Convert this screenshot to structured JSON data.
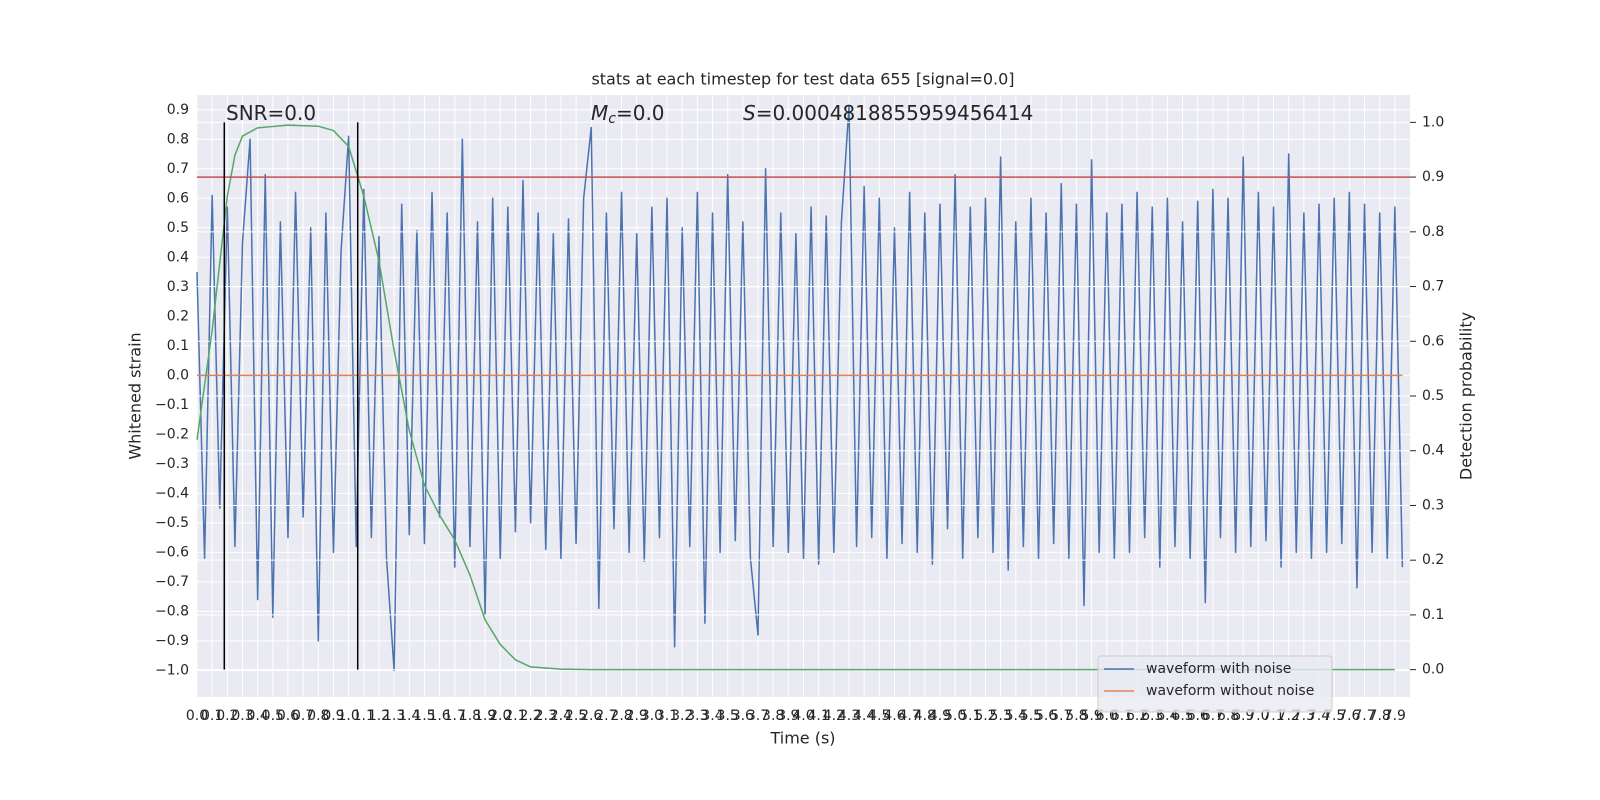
{
  "chart_data": {
    "type": "line",
    "title": "stats at each timestep for test data 655 [signal=0.0]",
    "xlabel": "Time (s)",
    "ylabel": "Whitened strain",
    "y2label": "Detection probability",
    "xlim": [
      0,
      8.0
    ],
    "ylim": [
      -1.09,
      0.95
    ],
    "y2lim": [
      -0.05,
      1.05
    ],
    "grid": true,
    "legend": "lower right",
    "xticks": [
      {
        "value": 0,
        "label": "0.0"
      },
      0.1,
      0.2,
      0.3,
      0.4,
      0.5,
      0.6,
      0.7,
      0.8,
      0.9,
      {
        "value": 1,
        "label": "1.0"
      },
      1.1,
      1.2,
      1.3,
      1.4,
      1.5,
      1.6,
      1.7,
      1.8,
      1.9,
      {
        "value": 2,
        "label": "2.0"
      },
      2.1,
      2.2,
      2.3,
      2.4,
      2.5,
      2.6,
      2.7,
      2.8,
      2.9,
      {
        "value": 3,
        "label": "3.0"
      },
      3.1,
      3.2,
      3.3,
      3.4,
      3.5,
      3.6,
      3.7,
      3.8,
      3.9,
      {
        "value": 4,
        "label": "4.0"
      },
      4.1,
      4.2,
      4.3,
      4.4,
      4.5,
      4.6,
      4.7,
      4.8,
      4.9,
      {
        "value": 5,
        "label": "5.0"
      },
      5.1,
      5.2,
      5.3,
      5.4,
      5.5,
      5.6,
      5.7,
      5.8,
      5.9,
      {
        "value": 6,
        "label": "6.0"
      },
      6.1,
      6.2,
      6.3,
      6.4,
      6.5,
      6.6,
      6.7,
      6.8,
      6.9,
      {
        "value": 7,
        "label": "7.0"
      },
      7.1,
      7.2,
      7.3,
      7.4,
      7.5,
      7.6,
      7.7,
      7.8,
      7.9
    ],
    "yticks": [
      0.9,
      0.8,
      0.7,
      0.6,
      0.5,
      0.4,
      0.3,
      0.2,
      0.1,
      {
        "value": 0,
        "label": "0.0"
      },
      {
        "value": -0.1,
        "label": "−0.1"
      },
      {
        "value": -0.2,
        "label": "−0.2"
      },
      {
        "value": -0.3,
        "label": "−0.3"
      },
      {
        "value": -0.4,
        "label": "−0.4"
      },
      {
        "value": -0.5,
        "label": "−0.5"
      },
      {
        "value": -0.6,
        "label": "−0.6"
      },
      {
        "value": -0.7,
        "label": "−0.7"
      },
      {
        "value": -0.8,
        "label": "−0.8"
      },
      {
        "value": -0.9,
        "label": "−0.9"
      },
      {
        "value": -1.0,
        "label": "−1.0"
      }
    ],
    "y2ticks": [
      {
        "value": 0,
        "label": "0.0"
      },
      0.1,
      0.2,
      0.3,
      0.4,
      0.5,
      0.6,
      0.7,
      0.8,
      0.9,
      {
        "value": 1,
        "label": "1.0"
      }
    ],
    "series": [
      {
        "name": "waveform with noise",
        "color": "#4c72b0",
        "x": [
          0,
          0.05,
          0.1,
          0.15,
          0.2,
          0.25,
          0.3,
          0.35,
          0.4,
          0.45,
          0.5,
          0.55,
          0.6,
          0.65,
          0.7,
          0.75,
          0.8,
          0.85,
          0.9,
          0.95,
          1,
          1.05,
          1.1,
          1.15,
          1.2,
          1.25,
          1.3,
          1.35,
          1.4,
          1.45,
          1.5,
          1.55,
          1.6,
          1.65,
          1.7,
          1.75,
          1.8,
          1.85,
          1.9,
          1.95,
          2,
          2.05,
          2.1,
          2.15,
          2.2,
          2.25,
          2.3,
          2.35,
          2.4,
          2.45,
          2.5,
          2.55,
          2.6,
          2.65,
          2.7,
          2.75,
          2.8,
          2.85,
          2.9,
          2.95,
          3,
          3.05,
          3.1,
          3.15,
          3.2,
          3.25,
          3.3,
          3.35,
          3.4,
          3.45,
          3.5,
          3.55,
          3.6,
          3.65,
          3.7,
          3.75,
          3.8,
          3.85,
          3.9,
          3.95,
          4,
          4.05,
          4.1,
          4.15,
          4.2,
          4.25,
          4.3,
          4.35,
          4.4,
          4.45,
          4.5,
          4.55,
          4.6,
          4.65,
          4.7,
          4.75,
          4.8,
          4.85,
          4.9,
          4.95,
          5,
          5.05,
          5.1,
          5.15,
          5.2,
          5.25,
          5.3,
          5.35,
          5.4,
          5.45,
          5.5,
          5.55,
          5.6,
          5.65,
          5.7,
          5.75,
          5.8,
          5.85,
          5.9,
          5.95,
          6,
          6.05,
          6.1,
          6.15,
          6.2,
          6.25,
          6.3,
          6.35,
          6.4,
          6.45,
          6.5,
          6.55,
          6.6,
          6.65,
          6.7,
          6.75,
          6.8,
          6.85,
          6.9,
          6.95,
          7,
          7.05,
          7.1,
          7.15,
          7.2,
          7.25,
          7.3,
          7.35,
          7.4,
          7.45,
          7.5,
          7.55,
          7.6,
          7.65,
          7.7,
          7.75,
          7.8,
          7.85,
          7.9,
          7.95
        ],
        "values": [
          0.35,
          -0.62,
          0.61,
          -0.45,
          0.57,
          -0.58,
          0.45,
          0.8,
          -0.76,
          0.68,
          -0.82,
          0.52,
          -0.55,
          0.62,
          -0.48,
          0.5,
          -0.9,
          0.55,
          -0.6,
          0.42,
          0.81,
          -0.58,
          0.63,
          -0.55,
          0.47,
          -0.62,
          -1.0,
          0.58,
          -0.54,
          0.49,
          -0.57,
          0.62,
          -0.48,
          0.55,
          -0.65,
          0.8,
          -0.58,
          0.52,
          -0.81,
          0.6,
          -0.62,
          0.57,
          -0.53,
          0.66,
          -0.5,
          0.55,
          -0.59,
          0.48,
          -0.62,
          0.53,
          -0.57,
          0.6,
          0.84,
          -0.79,
          0.55,
          -0.52,
          0.62,
          -0.6,
          0.48,
          -0.63,
          0.57,
          -0.55,
          0.6,
          -0.92,
          0.5,
          -0.58,
          0.62,
          -0.84,
          0.55,
          -0.6,
          0.68,
          -0.56,
          0.52,
          -0.62,
          -0.88,
          0.7,
          -0.58,
          0.55,
          -0.6,
          0.48,
          -0.62,
          0.57,
          -0.64,
          0.54,
          -0.6,
          0.52,
          0.91,
          -0.58,
          0.64,
          -0.55,
          0.6,
          -0.62,
          0.5,
          -0.57,
          0.62,
          -0.6,
          0.55,
          -0.64,
          0.58,
          -0.52,
          0.68,
          -0.62,
          0.57,
          -0.55,
          0.6,
          -0.6,
          0.74,
          -0.66,
          0.52,
          -0.58,
          0.6,
          -0.62,
          0.55,
          -0.57,
          0.65,
          -0.62,
          0.58,
          -0.78,
          0.73,
          -0.6,
          0.55,
          -0.62,
          0.58,
          -0.6,
          0.62,
          -0.55,
          0.57,
          -0.65,
          0.6,
          -0.58,
          0.52,
          -0.62,
          0.59,
          -0.77,
          0.63,
          -0.55,
          0.6,
          -0.6,
          0.74,
          -0.58,
          0.62,
          -0.56,
          0.57,
          -0.65,
          0.75,
          -0.6,
          0.55,
          -0.62,
          0.58,
          -0.6,
          0.6,
          -0.57,
          0.62,
          -0.72,
          0.58,
          -0.6,
          0.55,
          -0.62,
          0.57,
          -0.65
        ]
      },
      {
        "name": "waveform without noise",
        "color": "#dd8452",
        "x": [
          0,
          7.95
        ],
        "values": [
          0,
          0
        ]
      },
      {
        "color": "#55a868",
        "axis": "y2",
        "x": [
          0,
          0.1,
          0.2,
          0.25,
          0.3,
          0.4,
          0.6,
          0.8,
          0.9,
          1.0,
          1.1,
          1.2,
          1.3,
          1.4,
          1.5,
          1.6,
          1.7,
          1.8,
          1.9,
          2.0,
          2.1,
          2.2,
          2.4,
          2.6,
          7.9
        ],
        "values": [
          0.42,
          0.62,
          0.865,
          0.94,
          0.975,
          0.99,
          0.995,
          0.993,
          0.985,
          0.956,
          0.865,
          0.747,
          0.583,
          0.437,
          0.337,
          0.282,
          0.237,
          0.173,
          0.091,
          0.046,
          0.018,
          0.005,
          0.001,
          0.0,
          0.0
        ]
      }
    ],
    "hlines": [
      {
        "y": 0.9,
        "axis": "y2",
        "color": "#c44e52"
      }
    ],
    "vlines": [
      {
        "x": 0.18,
        "ymin": 0,
        "ymax": 1,
        "axis": "y2",
        "color": "#000000"
      },
      {
        "x": 1.06,
        "ymin": 0,
        "ymax": 1,
        "axis": "y2",
        "color": "#000000"
      }
    ],
    "annotations": [
      {
        "text": "SNR=0.0"
      },
      {
        "symbol": "M",
        "subscript": "c",
        "text": "=0.0"
      },
      {
        "symbol": "S",
        "text": "=0.0004818855959456414"
      }
    ]
  }
}
